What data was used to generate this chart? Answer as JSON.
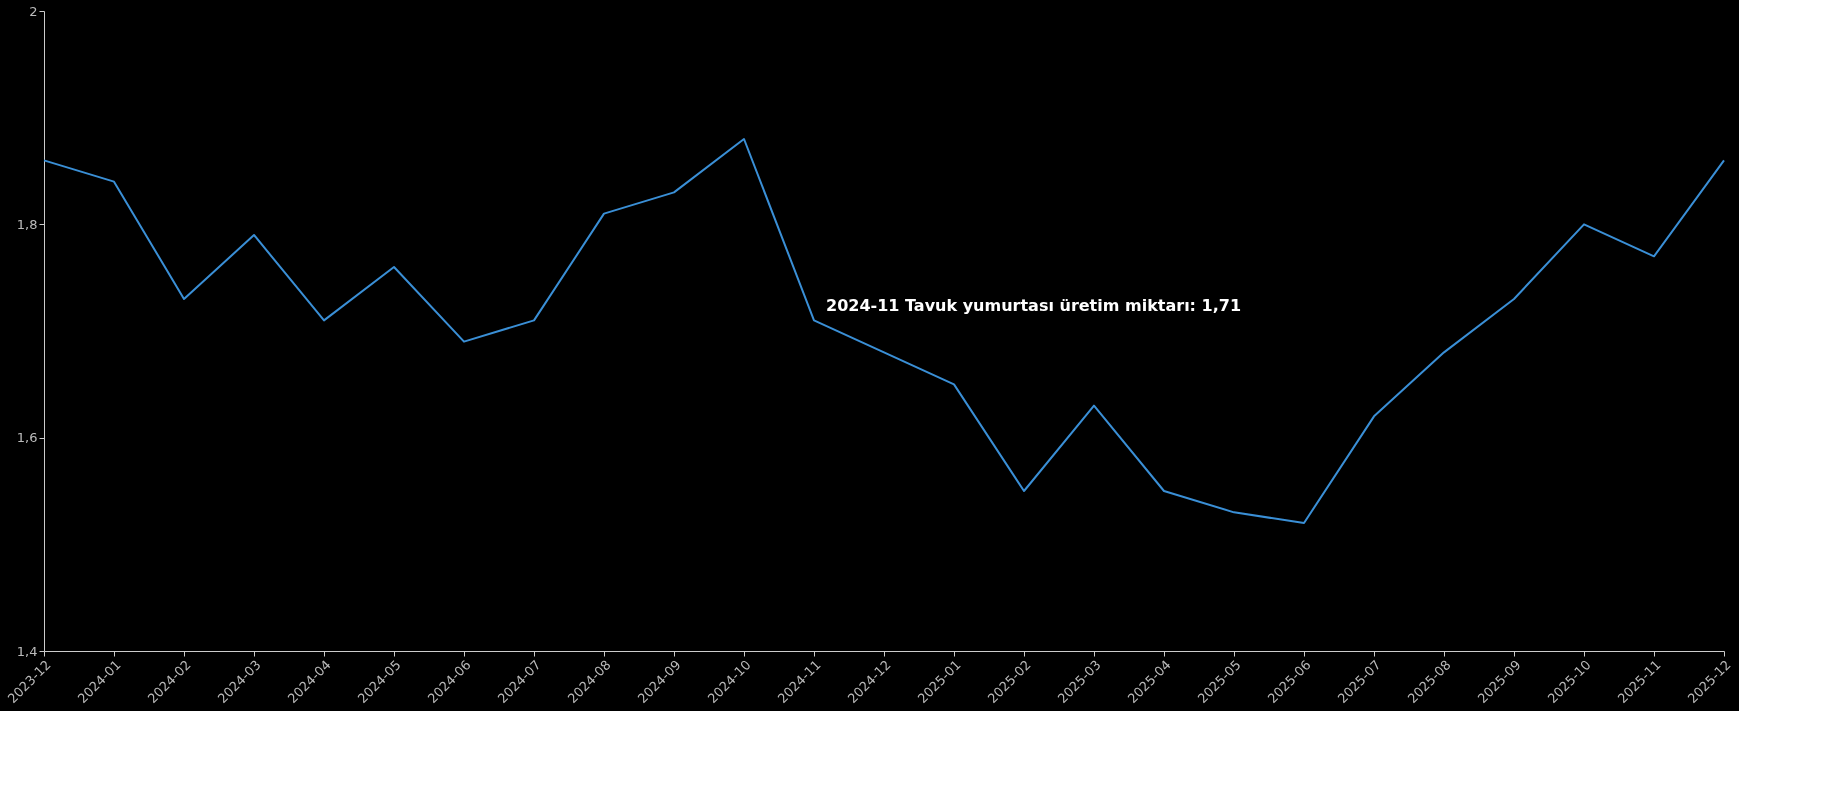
{
  "chart_data": {
    "type": "line",
    "categories": [
      "2023-12",
      "2024-01",
      "2024-02",
      "2024-03",
      "2024-04",
      "2024-05",
      "2024-06",
      "2024-07",
      "2024-08",
      "2024-09",
      "2024-10",
      "2024-11",
      "2024-12",
      "2025-01",
      "2025-02",
      "2025-03",
      "2025-04",
      "2025-05",
      "2025-06",
      "2025-07",
      "2025-08",
      "2025-09",
      "2025-10",
      "2025-11",
      "2025-12"
    ],
    "series": [
      {
        "color": "#3a8fd6",
        "values": [
          1.86,
          1.84,
          1.73,
          1.79,
          1.71,
          1.76,
          1.69,
          1.71,
          1.81,
          1.83,
          1.88,
          1.71,
          1.68,
          1.65,
          1.55,
          1.63,
          1.55,
          1.53,
          1.52,
          1.62,
          1.68,
          1.73,
          1.8,
          1.77,
          1.86
        ]
      }
    ],
    "ylim": [
      1.4,
      2.0
    ],
    "yticks": [
      {
        "value": 1.4,
        "label": "1,4"
      },
      {
        "value": 1.6,
        "label": "1,6"
      },
      {
        "value": 1.8,
        "label": "1,8"
      },
      {
        "value": 2.0,
        "label": "2"
      }
    ],
    "grid": false,
    "marker": "none",
    "line_style": "solid",
    "annotations": [
      {
        "text": "2024-11 Tavuk yumurtası üretim miktarı: 1,71",
        "x": "2024-11",
        "y": 1.71
      }
    ]
  }
}
